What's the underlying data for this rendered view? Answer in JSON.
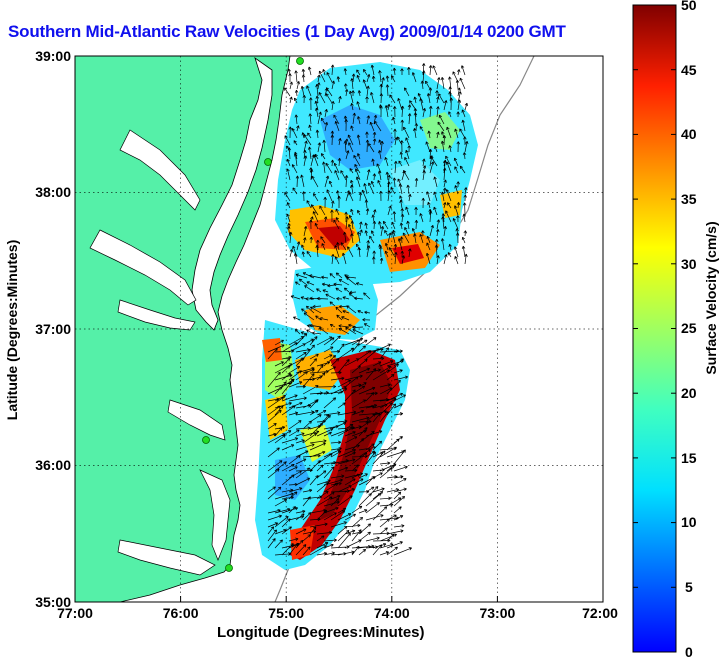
{
  "title": "Southern Mid-Atlantic Raw Velocities (1 Day Avg) 2009/01/14 0200 GMT",
  "map": {
    "xlabel": "Longitude (Degrees:Minutes)",
    "ylabel": "Latitude (Degrees:Minutes)",
    "x_ticks": [
      "77:00",
      "76:00",
      "75:00",
      "74:00",
      "73:00",
      "72:00"
    ],
    "y_ticks": [
      "39:00",
      "38:00",
      "37:00",
      "36:00",
      "35:00"
    ],
    "lon_range": [
      -77,
      -72
    ],
    "lat_range": [
      35,
      39
    ],
    "grid": true,
    "land_color": "#55f0a8",
    "station_color": "#22dd22"
  },
  "colorbar": {
    "label": "Surface Velocity (cm/s)",
    "ticks": [
      "0",
      "5",
      "10",
      "15",
      "20",
      "25",
      "30",
      "35",
      "40",
      "45",
      "50"
    ],
    "range": [
      0,
      50
    ],
    "colormap": "jet"
  }
}
